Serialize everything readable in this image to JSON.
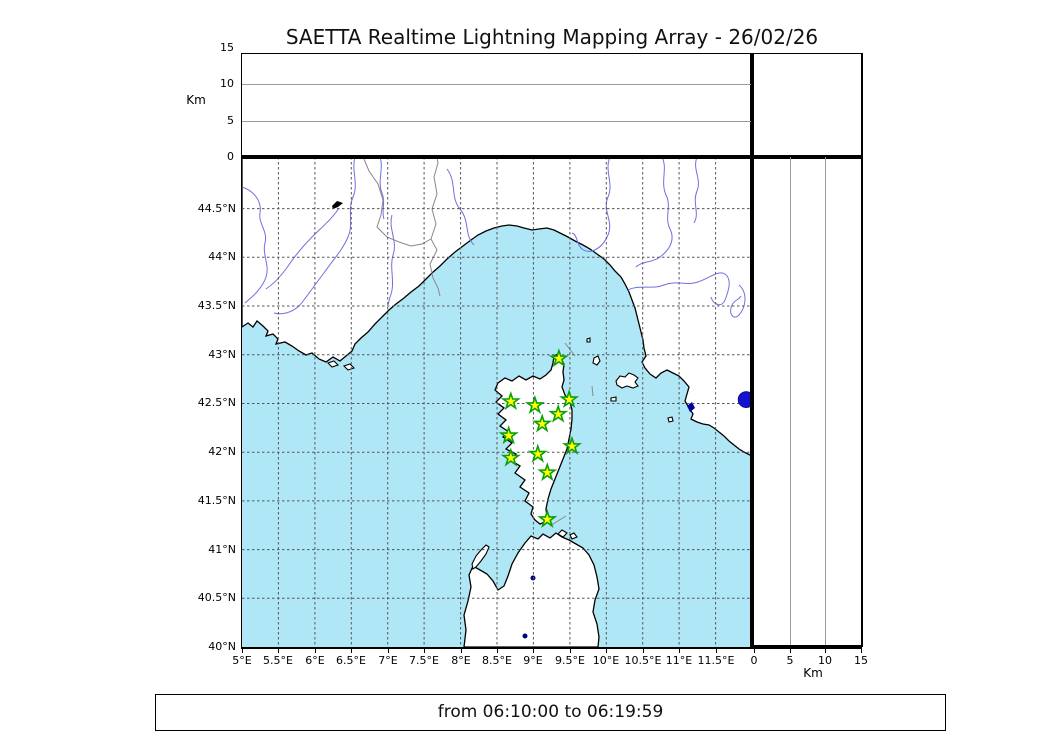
{
  "title": "SAETTA Realtime Lightning Mapping Array - 26/02/26",
  "footer": {
    "time_range": "from 06:10:00 to 06:19:59"
  },
  "colors": {
    "sea": "#b0e7f7",
    "land": "#ffffff",
    "coastline": "#000000",
    "river": "#7070e0",
    "country_border": "#888888",
    "grid": "#555555",
    "station_fill": "#ffff00",
    "station_stroke": "#0aa00a",
    "event_dot_fill": "#1212cf",
    "event_dot_stroke": "#000080",
    "lake_black": "#000000",
    "lake_navy": "#000080"
  },
  "altitude_panel": {
    "axis_label": "Km",
    "range_km": [
      0,
      15
    ],
    "ticks": [
      {
        "label": "15",
        "km": 15
      },
      {
        "label": "10",
        "km": 10
      },
      {
        "label": "5",
        "km": 5
      },
      {
        "label": "0",
        "km": 0
      }
    ],
    "gridlines_km": [
      5,
      10
    ]
  },
  "right_panel": {
    "axis_label": "Km",
    "range_km": [
      0,
      15
    ],
    "ticks": [
      {
        "label": "0",
        "km": 0
      },
      {
        "label": "5",
        "km": 5
      },
      {
        "label": "10",
        "km": 10
      },
      {
        "label": "15",
        "km": 15
      }
    ],
    "gridlines_km": [
      5,
      10
    ]
  },
  "map": {
    "lon_range": [
      5,
      12
    ],
    "lat_range": [
      40,
      45.03
    ],
    "lon_ticks": [
      {
        "label": "5°E",
        "lon": 5
      },
      {
        "label": "5.5°E",
        "lon": 5.5
      },
      {
        "label": "6°E",
        "lon": 6
      },
      {
        "label": "6.5°E",
        "lon": 6.5
      },
      {
        "label": "7°E",
        "lon": 7
      },
      {
        "label": "7.5°E",
        "lon": 7.5
      },
      {
        "label": "8°E",
        "lon": 8
      },
      {
        "label": "8.5°E",
        "lon": 8.5
      },
      {
        "label": "9°E",
        "lon": 9
      },
      {
        "label": "9.5°E",
        "lon": 9.5
      },
      {
        "label": "10°E",
        "lon": 10
      },
      {
        "label": "10.5°E",
        "lon": 10.5
      },
      {
        "label": "11°E",
        "lon": 11
      },
      {
        "label": "11.5°E",
        "lon": 11.5
      }
    ],
    "lat_ticks": [
      {
        "label": "44.5°N",
        "lat": 44.5
      },
      {
        "label": "44°N",
        "lat": 44
      },
      {
        "label": "43.5°N",
        "lat": 43.5
      },
      {
        "label": "43°N",
        "lat": 43
      },
      {
        "label": "42.5°N",
        "lat": 42.5
      },
      {
        "label": "42°N",
        "lat": 42
      },
      {
        "label": "41.5°N",
        "lat": 41.5
      },
      {
        "label": "41°N",
        "lat": 41
      },
      {
        "label": "40.5°N",
        "lat": 40.5
      },
      {
        "label": "40°N",
        "lat": 40
      }
    ],
    "grid_lons": [
      5.5,
      6,
      6.5,
      7,
      7.5,
      8,
      8.5,
      9,
      9.5,
      10,
      10.5,
      11,
      11.5
    ],
    "grid_lats": [
      44.5,
      44,
      43.5,
      43,
      42.5,
      42,
      41.5,
      41,
      40.5
    ],
    "stations": [
      {
        "lon": 9.35,
        "lat": 42.96
      },
      {
        "lon": 8.69,
        "lat": 42.52
      },
      {
        "lon": 9.02,
        "lat": 42.48
      },
      {
        "lon": 9.49,
        "lat": 42.54
      },
      {
        "lon": 9.34,
        "lat": 42.39
      },
      {
        "lon": 9.12,
        "lat": 42.29
      },
      {
        "lon": 8.66,
        "lat": 42.17
      },
      {
        "lon": 8.69,
        "lat": 41.94
      },
      {
        "lon": 9.06,
        "lat": 41.98
      },
      {
        "lon": 9.53,
        "lat": 42.06
      },
      {
        "lon": 9.19,
        "lat": 41.79
      },
      {
        "lon": 9.19,
        "lat": 41.31
      }
    ],
    "event_dot": {
      "lon": 11.92,
      "lat": 42.54
    }
  }
}
